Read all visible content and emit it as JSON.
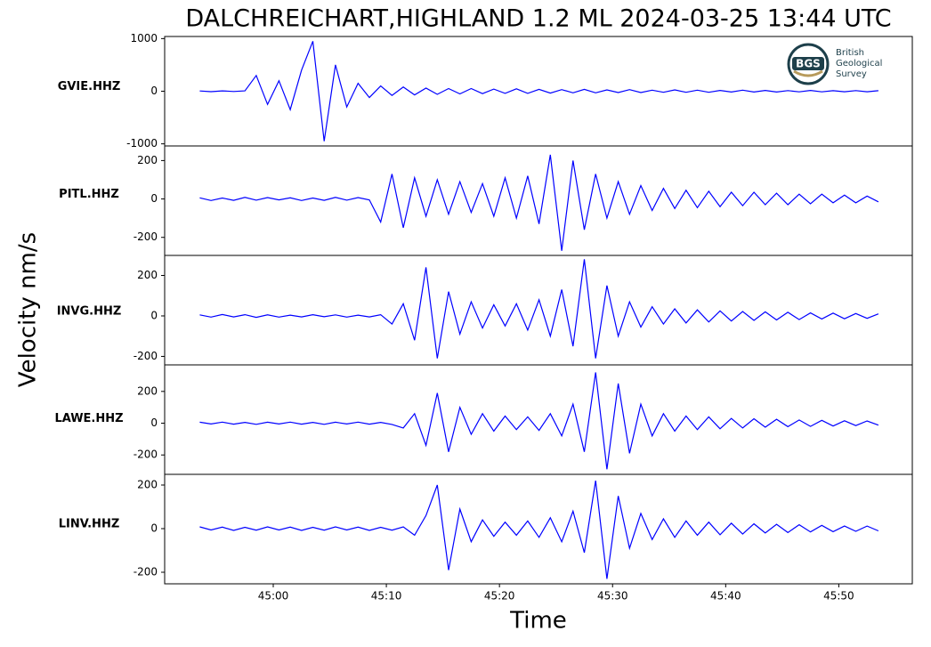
{
  "chart_data": {
    "type": "line",
    "title": "DALCHREICHART,HIGHLAND 1.2 ML   2024-03-25 13:44 UTC",
    "xlabel": "Time",
    "ylabel": "Velocity nm/s",
    "logo": {
      "mark": "BGS",
      "lines": [
        "British",
        "Geological",
        "Survey"
      ]
    },
    "x": [
      53.5,
      54.5,
      55.5,
      56.5,
      57.5,
      58.5,
      59.5,
      60.5,
      61.5,
      62.5,
      63.5,
      64.5,
      65.5,
      66.5,
      67.5,
      68.5,
      69.5,
      70.5,
      71.5,
      72.5,
      73.5,
      74.5,
      75.5,
      76.5,
      77.5,
      78.5,
      79.5,
      80.5,
      81.5,
      82.5,
      83.5,
      84.5,
      85.5,
      86.5,
      87.5,
      88.5,
      89.5,
      90.5,
      91.5,
      92.5,
      93.5,
      94.5,
      95.5,
      96.5,
      97.5,
      98.5,
      99.5,
      100.5,
      101.5,
      102.5,
      103.5,
      104.5,
      105.5,
      106.5,
      107.5,
      108.5,
      109.5,
      110.5,
      111.5,
      112.5,
      113.5
    ],
    "xlim": [
      50.4,
      116.5
    ],
    "xticks": [
      {
        "value": 60,
        "label": "45:00"
      },
      {
        "value": 70,
        "label": "45:10"
      },
      {
        "value": 80,
        "label": "45:20"
      },
      {
        "value": 90,
        "label": "45:30"
      },
      {
        "value": 100,
        "label": "45:40"
      },
      {
        "value": 110,
        "label": "45:50"
      }
    ],
    "panels": [
      {
        "name": "GVIE.HHZ",
        "color": "#0000ff",
        "ylim": [
          -1040,
          1040
        ],
        "yticks": [
          1000,
          0,
          -1000
        ],
        "values": [
          5,
          -8,
          6,
          -5,
          7,
          300,
          -250,
          200,
          -350,
          400,
          950,
          -950,
          500,
          -300,
          150,
          -120,
          100,
          -80,
          80,
          -70,
          60,
          -60,
          50,
          -50,
          50,
          -45,
          40,
          -40,
          45,
          -40,
          35,
          -35,
          30,
          -30,
          35,
          -30,
          25,
          -25,
          30,
          -25,
          20,
          -20,
          25,
          -20,
          20,
          -20,
          15,
          -15,
          20,
          -15,
          15,
          -15,
          12,
          -12,
          15,
          -12,
          10,
          -10,
          12,
          -10,
          10
        ]
      },
      {
        "name": "PITL.HHZ",
        "color": "#0000ff",
        "ylim": [
          -294,
          276
        ],
        "yticks": [
          200,
          0,
          -200
        ],
        "values": [
          6,
          -8,
          5,
          -7,
          8,
          -6,
          7,
          -5,
          6,
          -8,
          5,
          -7,
          8,
          -6,
          7,
          -5,
          -120,
          130,
          -150,
          110,
          -90,
          100,
          -80,
          90,
          -70,
          80,
          -90,
          110,
          -100,
          120,
          -130,
          230,
          -270,
          200,
          -160,
          130,
          -100,
          90,
          -80,
          70,
          -60,
          55,
          -50,
          45,
          -45,
          40,
          -40,
          35,
          -35,
          35,
          -30,
          30,
          -30,
          25,
          -25,
          25,
          -20,
          20,
          -20,
          15,
          -15
        ]
      },
      {
        "name": "INVG.HHZ",
        "color": "#0000ff",
        "ylim": [
          -242,
          299
        ],
        "yticks": [
          200,
          0,
          -200
        ],
        "values": [
          5,
          -6,
          7,
          -5,
          6,
          -7,
          5,
          -6,
          4,
          -5,
          6,
          -4,
          5,
          -6,
          4,
          -5,
          6,
          -40,
          60,
          -120,
          240,
          -210,
          120,
          -90,
          70,
          -60,
          55,
          -50,
          60,
          -70,
          80,
          -100,
          130,
          -150,
          280,
          -210,
          150,
          -100,
          70,
          -55,
          45,
          -40,
          35,
          -35,
          30,
          -30,
          25,
          -25,
          22,
          -22,
          20,
          -20,
          18,
          -18,
          15,
          -15,
          14,
          -14,
          12,
          -12,
          10
        ]
      },
      {
        "name": "LAWE.HHZ",
        "color": "#0000ff",
        "ylim": [
          -322,
          367
        ],
        "yticks": [
          200,
          0,
          -200
        ],
        "values": [
          6,
          -5,
          7,
          -6,
          5,
          -7,
          6,
          -5,
          7,
          -6,
          5,
          -7,
          6,
          -5,
          7,
          -6,
          5,
          -8,
          -30,
          60,
          -140,
          190,
          -180,
          100,
          -70,
          60,
          -50,
          45,
          -40,
          40,
          -45,
          60,
          -80,
          120,
          -180,
          320,
          -290,
          250,
          -190,
          120,
          -80,
          60,
          -50,
          45,
          -40,
          40,
          -35,
          30,
          -30,
          28,
          -25,
          25,
          -22,
          20,
          -20,
          18,
          -18,
          15,
          -15,
          14,
          -12
        ]
      },
      {
        "name": "LINV.HHZ",
        "color": "#0000ff",
        "ylim": [
          -253,
          249
        ],
        "yticks": [
          200,
          0,
          -200
        ],
        "values": [
          8,
          -6,
          7,
          -8,
          6,
          -7,
          8,
          -6,
          7,
          -8,
          6,
          -7,
          8,
          -6,
          7,
          -8,
          6,
          -7,
          8,
          -30,
          60,
          200,
          -190,
          90,
          -60,
          40,
          -35,
          30,
          -30,
          35,
          -40,
          50,
          -60,
          80,
          -110,
          220,
          -230,
          150,
          -90,
          70,
          -50,
          45,
          -40,
          35,
          -30,
          30,
          -28,
          25,
          -25,
          22,
          -20,
          20,
          -18,
          18,
          -15,
          15,
          -14,
          12,
          -12,
          12,
          -10
        ]
      }
    ]
  }
}
